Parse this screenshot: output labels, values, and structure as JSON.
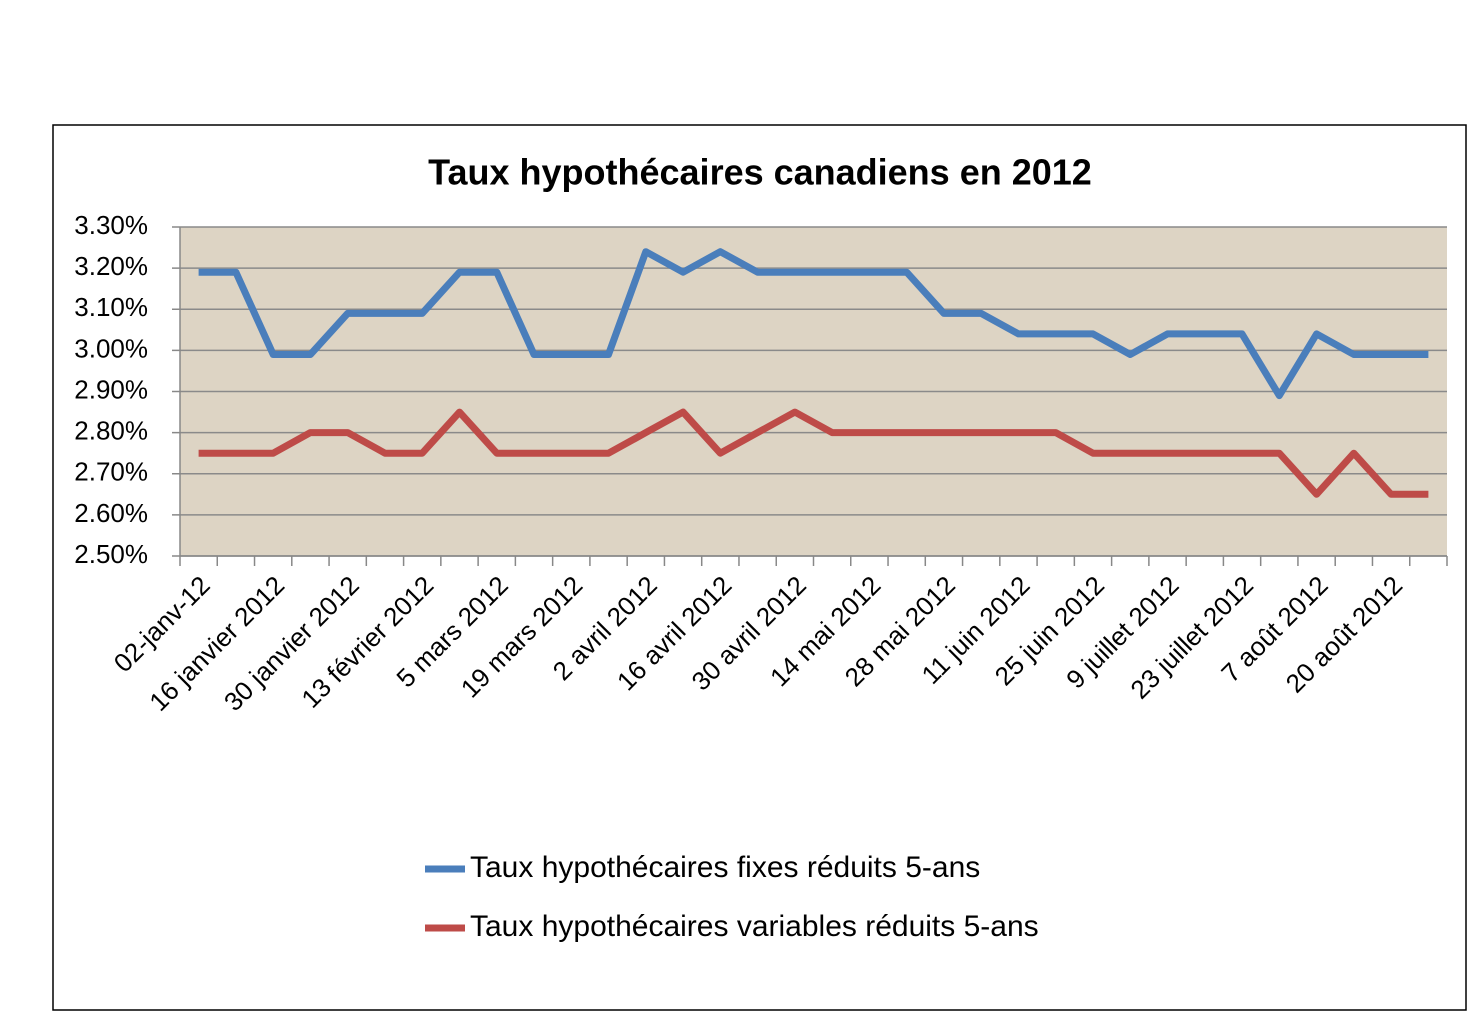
{
  "chart_data": {
    "type": "line",
    "title": "Taux hypothécaires canadiens en 2012",
    "categories": [
      "02-janv-12",
      null,
      "16 janvier 2012",
      null,
      "30 janvier 2012",
      null,
      "13 février 2012",
      null,
      "5 mars 2012",
      null,
      "19 mars 2012",
      null,
      "2 avril 2012",
      null,
      "16 avril 2012",
      null,
      "30 avril 2012",
      null,
      "14 mai 2012",
      null,
      "28 mai 2012",
      null,
      "11 juin 2012",
      null,
      "25 juin 2012",
      null,
      "9 juillet 2012",
      null,
      "23 juillet 2012",
      null,
      "7 août 2012",
      null,
      "20 août 2012",
      null
    ],
    "series": [
      {
        "name": "Taux hypothécaires fixes réduits 5-ans",
        "color": "#4a7ebb",
        "values": [
          3.19,
          3.19,
          2.99,
          2.99,
          3.09,
          3.09,
          3.09,
          3.19,
          3.19,
          2.99,
          2.99,
          2.99,
          3.24,
          3.19,
          3.24,
          3.19,
          3.19,
          3.19,
          3.19,
          3.19,
          3.09,
          3.09,
          3.04,
          3.04,
          3.04,
          2.99,
          3.04,
          3.04,
          3.04,
          2.89,
          3.04,
          2.99,
          2.99,
          2.99
        ]
      },
      {
        "name": "Taux hypothécaires variables réduits 5-ans",
        "color": "#be4b48",
        "values": [
          2.75,
          2.75,
          2.75,
          2.8,
          2.8,
          2.75,
          2.75,
          2.85,
          2.75,
          2.75,
          2.75,
          2.75,
          2.8,
          2.85,
          2.75,
          2.8,
          2.85,
          2.8,
          2.8,
          2.8,
          2.8,
          2.8,
          2.8,
          2.8,
          2.75,
          2.75,
          2.75,
          2.75,
          2.75,
          2.75,
          2.65,
          2.75,
          2.65,
          2.65
        ]
      }
    ],
    "ylim": [
      2.5,
      3.3
    ],
    "yticks": [
      {
        "value": 2.5,
        "label": "2.50%"
      },
      {
        "value": 2.6,
        "label": "2.60%"
      },
      {
        "value": 2.7,
        "label": "2.70%"
      },
      {
        "value": 2.8,
        "label": "2.80%"
      },
      {
        "value": 2.9,
        "label": "2.90%"
      },
      {
        "value": 3.0,
        "label": "3.00%"
      },
      {
        "value": 3.1,
        "label": "3.10%"
      },
      {
        "value": 3.2,
        "label": "3.20%"
      },
      {
        "value": 3.3,
        "label": "3.30%"
      }
    ],
    "grid": true
  }
}
